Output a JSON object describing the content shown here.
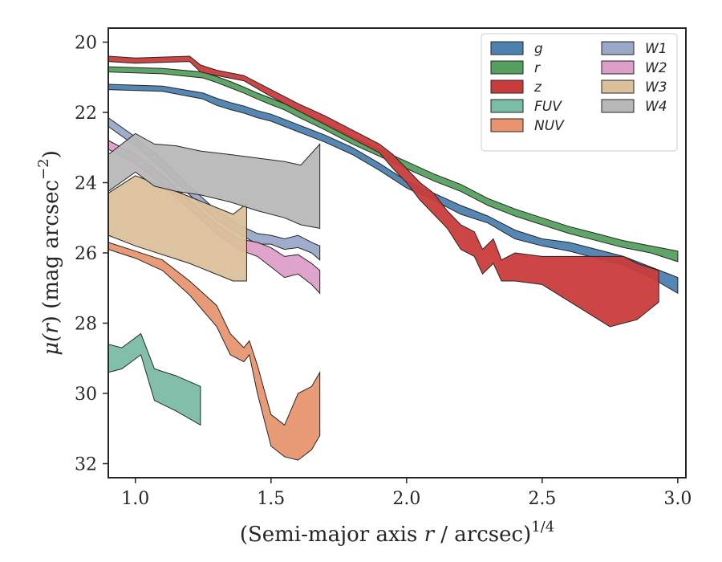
{
  "chart_data": {
    "type": "area",
    "xlabel_main": "(Semi-major axis",
    "xlabel_var": "r",
    "xlabel_tail": "/ arcsec)",
    "xlabel_sup": "1/4",
    "ylabel_main": "μ(",
    "ylabel_var": "r",
    "ylabel_tail": ") (mag arcsec",
    "ylabel_sup": "−2",
    "ylabel_close": ")",
    "xlim": [
      0.9,
      3.03
    ],
    "ylim": [
      32.4,
      19.6
    ],
    "y_inverted": true,
    "xticks": [
      {
        "value": 1.0,
        "label": "1.0"
      },
      {
        "value": 1.5,
        "label": "1.5"
      },
      {
        "value": 2.0,
        "label": "2.0"
      },
      {
        "value": 2.5,
        "label": "2.5"
      },
      {
        "value": 3.0,
        "label": "3.0"
      }
    ],
    "yticks": [
      {
        "value": 20,
        "label": "20"
      },
      {
        "value": 22,
        "label": "22"
      },
      {
        "value": 24,
        "label": "24"
      },
      {
        "value": 26,
        "label": "26"
      },
      {
        "value": 28,
        "label": "28"
      },
      {
        "value": 30,
        "label": "30"
      },
      {
        "value": 32,
        "label": "32"
      }
    ],
    "legend_position": "top-right",
    "legend_columns": 2,
    "series": [
      {
        "name": "g",
        "color": "#4c81b0",
        "x": [
          0.9,
          1.1,
          1.25,
          1.3,
          1.35,
          1.4,
          1.45,
          1.5,
          1.55,
          1.6,
          1.7,
          1.8,
          1.9,
          2.0,
          2.1,
          2.2,
          2.3,
          2.4,
          2.5,
          2.6,
          2.7,
          2.8,
          2.9,
          3.0
        ],
        "low": [
          21.2,
          21.25,
          21.45,
          21.6,
          21.72,
          21.82,
          21.95,
          22.05,
          22.2,
          22.35,
          22.65,
          23.0,
          23.45,
          23.95,
          24.3,
          24.65,
          24.95,
          25.35,
          25.6,
          25.7,
          25.9,
          26.1,
          26.4,
          26.7
        ],
        "high": [
          21.35,
          21.4,
          21.62,
          21.8,
          21.92,
          22.02,
          22.15,
          22.25,
          22.4,
          22.55,
          22.85,
          23.2,
          23.65,
          24.15,
          24.5,
          24.9,
          25.15,
          25.6,
          25.8,
          25.95,
          26.15,
          26.35,
          26.7,
          27.15
        ]
      },
      {
        "name": "r",
        "color": "#55a05f",
        "x": [
          0.9,
          1.1,
          1.25,
          1.3,
          1.35,
          1.4,
          1.45,
          1.5,
          1.55,
          1.6,
          1.7,
          1.8,
          1.9,
          2.0,
          2.1,
          2.2,
          2.3,
          2.4,
          2.5,
          2.6,
          2.7,
          2.8,
          2.9,
          3.0
        ],
        "low": [
          20.7,
          20.75,
          20.85,
          20.98,
          21.12,
          21.28,
          21.45,
          21.6,
          21.75,
          21.95,
          22.3,
          22.7,
          23.05,
          23.4,
          23.75,
          24.05,
          24.45,
          24.75,
          25.0,
          25.25,
          25.45,
          25.65,
          25.8,
          25.95
        ],
        "high": [
          20.85,
          20.9,
          21.02,
          21.15,
          21.3,
          21.45,
          21.62,
          21.78,
          21.93,
          22.13,
          22.5,
          22.9,
          23.25,
          23.6,
          23.95,
          24.25,
          24.65,
          24.95,
          25.2,
          25.45,
          25.65,
          25.85,
          26.0,
          26.25
        ]
      },
      {
        "name": "z",
        "color": "#c93c3c",
        "x": [
          0.9,
          1.0,
          1.2,
          1.24,
          1.3,
          1.4,
          1.5,
          1.6,
          1.7,
          1.8,
          1.9,
          1.95,
          2.0,
          2.05,
          2.1,
          2.15,
          2.2,
          2.25,
          2.28,
          2.32,
          2.35,
          2.4,
          2.5,
          2.75,
          2.8,
          2.85,
          2.93
        ],
        "low": [
          20.4,
          20.45,
          20.4,
          20.65,
          20.8,
          20.95,
          21.35,
          21.75,
          22.1,
          22.5,
          22.9,
          23.2,
          23.6,
          24.0,
          24.3,
          24.8,
          25.2,
          25.4,
          25.9,
          25.6,
          26.2,
          26.0,
          26.1,
          26.1,
          26.1,
          26.3,
          26.5
        ],
        "high": [
          20.55,
          20.6,
          20.55,
          20.85,
          20.95,
          21.1,
          21.55,
          21.95,
          22.35,
          22.75,
          23.15,
          23.6,
          24.0,
          24.5,
          24.9,
          25.3,
          25.9,
          26.1,
          26.6,
          26.3,
          26.8,
          26.8,
          26.9,
          28.1,
          28.0,
          27.9,
          27.4
        ]
      },
      {
        "name": "FUV",
        "color": "#7bbca7",
        "x": [
          0.9,
          0.95,
          1.02,
          1.07,
          1.15,
          1.24
        ],
        "low": [
          28.6,
          28.7,
          28.3,
          29.3,
          29.5,
          29.8
        ],
        "high": [
          29.4,
          29.3,
          28.9,
          30.2,
          30.5,
          30.9
        ]
      },
      {
        "name": "NUV",
        "color": "#e8956f",
        "x": [
          0.9,
          1.0,
          1.1,
          1.2,
          1.3,
          1.35,
          1.4,
          1.42,
          1.45,
          1.5,
          1.55,
          1.6,
          1.65,
          1.68
        ],
        "low": [
          25.7,
          25.95,
          26.2,
          26.8,
          27.5,
          28.3,
          28.7,
          28.5,
          29.2,
          30.6,
          30.9,
          30.0,
          29.8,
          29.4
        ],
        "high": [
          25.9,
          26.15,
          26.5,
          27.2,
          28.1,
          28.9,
          29.1,
          28.9,
          30.0,
          31.5,
          31.8,
          31.9,
          31.6,
          31.2
        ]
      },
      {
        "name": "W1",
        "color": "#9aa8c8",
        "x": [
          0.9,
          1.0,
          1.1,
          1.2,
          1.3,
          1.38,
          1.45,
          1.5,
          1.55,
          1.6,
          1.65,
          1.68
        ],
        "low": [
          22.15,
          22.7,
          23.35,
          24.1,
          24.8,
          25.2,
          25.45,
          25.5,
          25.6,
          25.5,
          25.7,
          25.8
        ],
        "high": [
          22.4,
          22.95,
          23.6,
          24.35,
          25.05,
          25.45,
          25.75,
          25.75,
          25.9,
          25.85,
          26.0,
          26.2
        ]
      },
      {
        "name": "W2",
        "color": "#dd9fc9",
        "x": [
          0.9,
          1.0,
          1.1,
          1.2,
          1.3,
          1.38,
          1.45,
          1.5,
          1.55,
          1.6,
          1.65,
          1.68
        ],
        "low": [
          22.8,
          23.2,
          23.8,
          24.5,
          25.2,
          25.6,
          25.7,
          25.85,
          26.1,
          26.05,
          26.3,
          26.5
        ],
        "high": [
          23.05,
          23.45,
          24.05,
          24.75,
          25.45,
          25.9,
          26.1,
          26.4,
          26.7,
          26.6,
          26.9,
          27.15
        ]
      },
      {
        "name": "W3",
        "color": "#dbc09b",
        "x": [
          0.9,
          1.0,
          1.2,
          1.36,
          1.41
        ],
        "low": [
          24.3,
          23.8,
          24.4,
          24.9,
          24.6
        ],
        "high": [
          25.5,
          25.8,
          26.3,
          26.8,
          26.8
        ]
      },
      {
        "name": "W4",
        "color": "#b8b8b8",
        "x": [
          0.9,
          1.0,
          1.07,
          1.15,
          1.24,
          1.35,
          1.45,
          1.55,
          1.61,
          1.68
        ],
        "low": [
          23.2,
          22.6,
          22.9,
          22.95,
          23.1,
          23.2,
          23.3,
          23.4,
          23.5,
          22.9
        ],
        "high": [
          24.25,
          23.7,
          24.1,
          24.25,
          24.35,
          24.55,
          24.8,
          25.0,
          25.2,
          25.3
        ]
      }
    ]
  }
}
